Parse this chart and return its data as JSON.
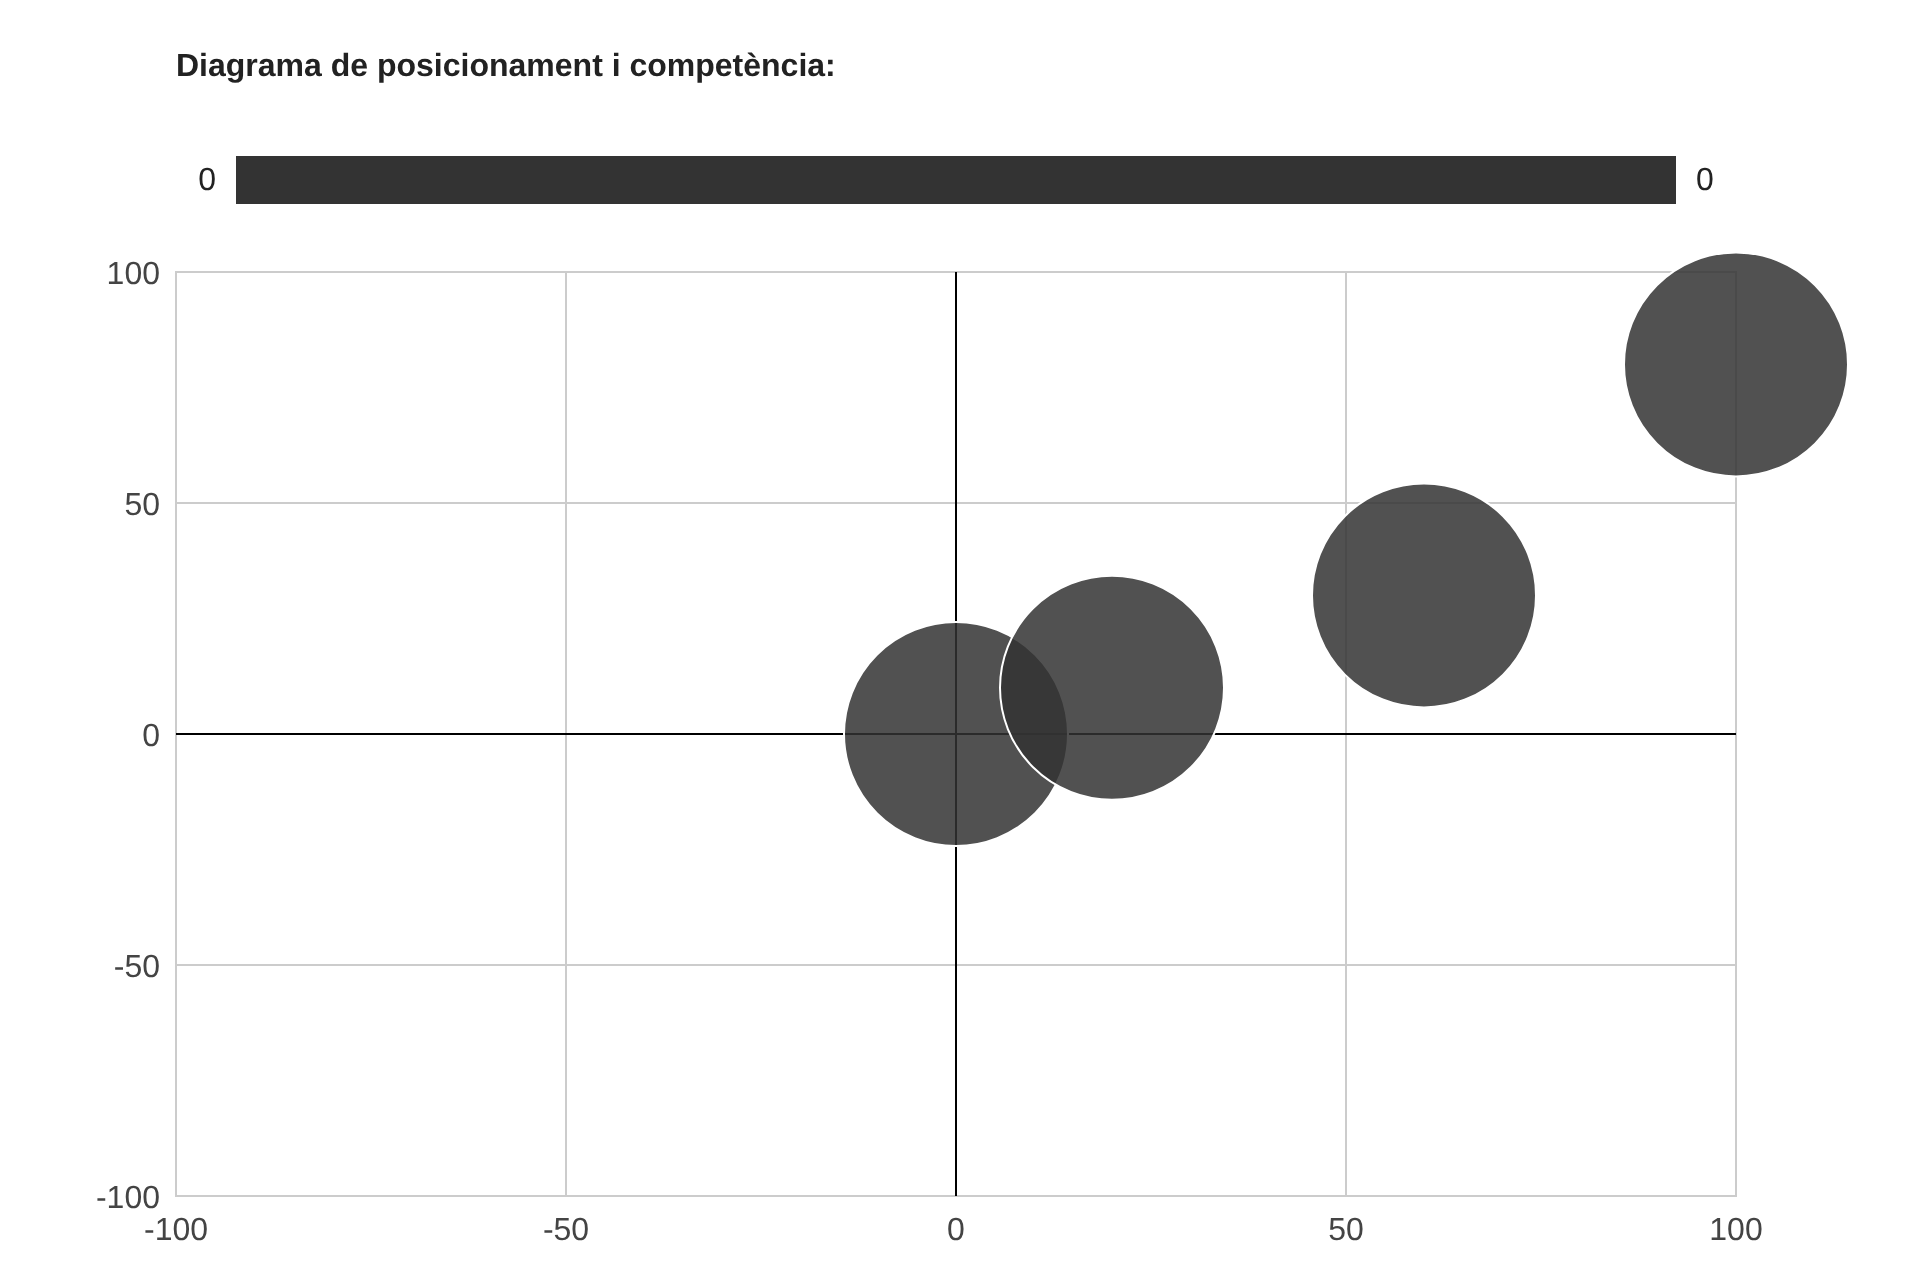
{
  "chart_data": {
    "type": "bubble",
    "title": "Diagrama de posicionament i competència:",
    "series": [
      {
        "color": "#333333",
        "x": [
          0,
          20,
          60,
          100
        ],
        "values": [
          0,
          10,
          30,
          80
        ],
        "sizes": [
          1,
          1,
          1,
          1
        ]
      }
    ],
    "annotations": [
      "0",
      "0"
    ],
    "xlim": [
      -100,
      100
    ],
    "xticks": [
      -100,
      -50,
      0,
      50,
      100
    ],
    "ylim": [
      -100,
      100
    ],
    "yticks": [
      -100,
      -50,
      0,
      50,
      100
    ],
    "grid": true
  }
}
